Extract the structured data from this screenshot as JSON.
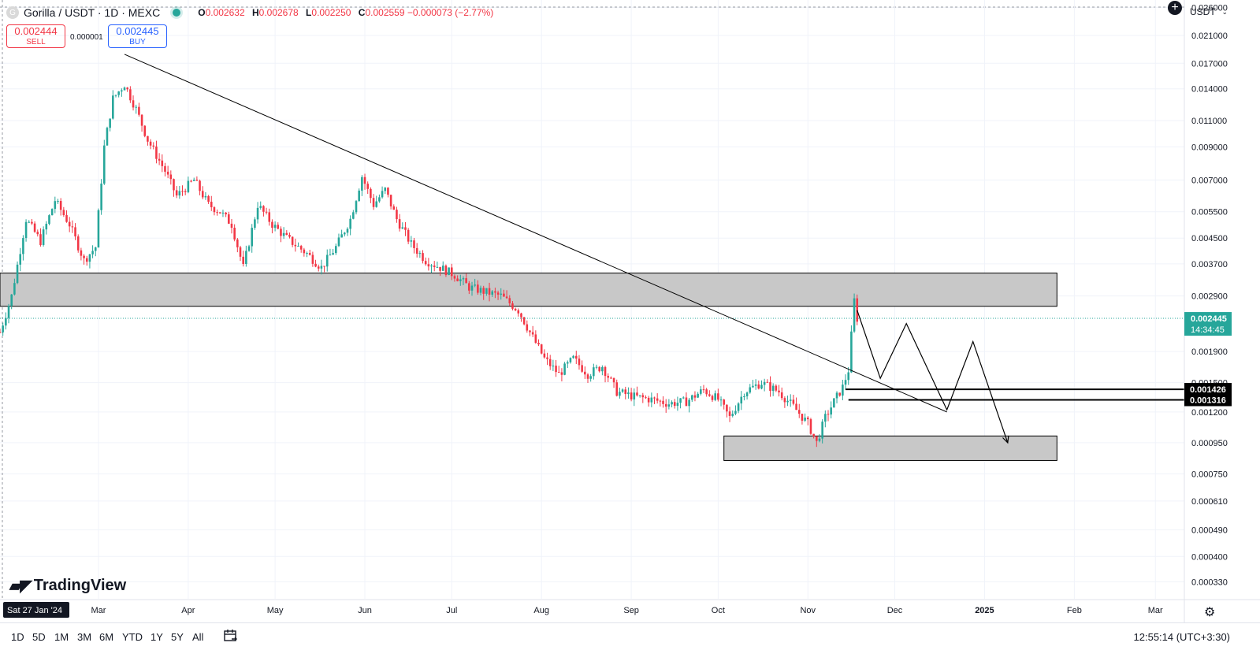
{
  "header": {
    "logo_letter": "G",
    "symbol": "Gorilla / USDT · 1D · MEXC",
    "ohlc": {
      "o_label": "O",
      "o": "0.002632",
      "h_label": "H",
      "h": "0.002678",
      "l_label": "L",
      "l": "0.002250",
      "c_label": "C",
      "c": "0.002559",
      "change": "−0.000073 (−2.77%)"
    },
    "sell_price": "0.002444",
    "sell_label": "SELL",
    "spread": "0.000001",
    "buy_price": "0.002445",
    "buy_label": "BUY",
    "currency": "USDT"
  },
  "branding": {
    "name": "TradingView"
  },
  "bottom": {
    "ranges": [
      "1D",
      "5D",
      "1M",
      "3M",
      "6M",
      "YTD",
      "1Y",
      "5Y",
      "All"
    ],
    "clock": "12:55:14 (UTC+3:30)"
  },
  "colors": {
    "up": "#26a69a",
    "down": "#f23645",
    "zone_fill": "#c8c8c8",
    "current_line": "#26a69a"
  },
  "chart_data": {
    "type": "candlestick",
    "scale": "log",
    "ylim": [
      0.00029,
      0.0275
    ],
    "yticks": [
      "0.026000",
      "0.021000",
      "0.017000",
      "0.014000",
      "0.011000",
      "0.009000",
      "0.007000",
      "0.005500",
      "0.004500",
      "0.003700",
      "0.002900",
      "0.001900",
      "0.001500",
      "0.001200",
      "0.000950",
      "0.000750",
      "0.000610",
      "0.000490",
      "0.000400",
      "0.000330"
    ],
    "x_start": "2024-01-27",
    "x_end": "2025-03-11",
    "xticks": [
      {
        "label": "Sat 27 Jan '24",
        "date": "2024-01-27",
        "badge": true
      },
      {
        "label": "Mar",
        "date": "2024-03-01"
      },
      {
        "label": "Apr",
        "date": "2024-04-01"
      },
      {
        "label": "May",
        "date": "2024-05-01"
      },
      {
        "label": "Jun",
        "date": "2024-06-01"
      },
      {
        "label": "Jul",
        "date": "2024-07-01"
      },
      {
        "label": "Aug",
        "date": "2024-08-01"
      },
      {
        "label": "Sep",
        "date": "2024-09-01"
      },
      {
        "label": "Oct",
        "date": "2024-10-01"
      },
      {
        "label": "Nov",
        "date": "2024-11-01"
      },
      {
        "label": "Dec",
        "date": "2024-12-01"
      },
      {
        "label": "2025",
        "date": "2025-01-01",
        "bold": true
      },
      {
        "label": "Feb",
        "date": "2025-02-01"
      },
      {
        "label": "Mar",
        "date": "2025-03-01"
      }
    ],
    "price_path": [
      [
        "2024-01-27",
        0.0022
      ],
      [
        "2024-01-31",
        0.0029
      ],
      [
        "2024-02-05",
        0.0052
      ],
      [
        "2024-02-10",
        0.0044
      ],
      [
        "2024-02-15",
        0.006
      ],
      [
        "2024-02-20",
        0.005
      ],
      [
        "2024-02-25",
        0.0038
      ],
      [
        "2024-02-29",
        0.0042
      ],
      [
        "2024-03-03",
        0.009
      ],
      [
        "2024-03-06",
        0.013
      ],
      [
        "2024-03-10",
        0.0145
      ],
      [
        "2024-03-14",
        0.012
      ],
      [
        "2024-03-18",
        0.0095
      ],
      [
        "2024-03-24",
        0.0075
      ],
      [
        "2024-03-28",
        0.0062
      ],
      [
        "2024-04-03",
        0.007
      ],
      [
        "2024-04-08",
        0.0058
      ],
      [
        "2024-04-12",
        0.0055
      ],
      [
        "2024-04-16",
        0.005
      ],
      [
        "2024-04-20",
        0.0036
      ],
      [
        "2024-04-25",
        0.0058
      ],
      [
        "2024-04-30",
        0.005
      ],
      [
        "2024-05-05",
        0.0045
      ],
      [
        "2024-05-12",
        0.004
      ],
      [
        "2024-05-17",
        0.0036
      ],
      [
        "2024-05-22",
        0.0042
      ],
      [
        "2024-05-27",
        0.0052
      ],
      [
        "2024-05-31",
        0.0072
      ],
      [
        "2024-06-04",
        0.0058
      ],
      [
        "2024-06-08",
        0.0065
      ],
      [
        "2024-06-12",
        0.0052
      ],
      [
        "2024-06-17",
        0.0043
      ],
      [
        "2024-06-22",
        0.0038
      ],
      [
        "2024-06-27",
        0.0036
      ],
      [
        "2024-07-02",
        0.0034
      ],
      [
        "2024-07-07",
        0.0031
      ],
      [
        "2024-07-12",
        0.003
      ],
      [
        "2024-07-18",
        0.0029
      ],
      [
        "2024-07-24",
        0.0026
      ],
      [
        "2024-07-28",
        0.0022
      ],
      [
        "2024-08-02",
        0.0018
      ],
      [
        "2024-08-07",
        0.0016
      ],
      [
        "2024-08-12",
        0.0018
      ],
      [
        "2024-08-17",
        0.0016
      ],
      [
        "2024-08-22",
        0.0017
      ],
      [
        "2024-08-27",
        0.0014
      ],
      [
        "2024-09-02",
        0.00135
      ],
      [
        "2024-09-08",
        0.00132
      ],
      [
        "2024-09-14",
        0.00128
      ],
      [
        "2024-09-20",
        0.0013
      ],
      [
        "2024-09-26",
        0.00142
      ],
      [
        "2024-10-01",
        0.00132
      ],
      [
        "2024-10-05",
        0.00115
      ],
      [
        "2024-10-10",
        0.0014
      ],
      [
        "2024-10-16",
        0.0015
      ],
      [
        "2024-10-22",
        0.0014
      ],
      [
        "2024-10-27",
        0.00125
      ],
      [
        "2024-11-01",
        0.0011
      ],
      [
        "2024-11-04",
        0.00095
      ],
      [
        "2024-11-07",
        0.00115
      ],
      [
        "2024-11-10",
        0.0013
      ],
      [
        "2024-11-13",
        0.00145
      ],
      [
        "2024-11-15",
        0.00165
      ],
      [
        "2024-11-17",
        0.0028
      ],
      [
        "2024-11-18",
        0.002445
      ]
    ],
    "current_price": {
      "value": 0.002445,
      "label": "0.002445",
      "countdown": "14:34:45"
    },
    "levels": [
      {
        "value": 0.001426,
        "label": "0.001426",
        "start": "2024-11-14"
      },
      {
        "value": 0.001316,
        "label": "0.001316",
        "start": "2024-11-15"
      }
    ],
    "zones": [
      {
        "start": "2024-01-27",
        "end": "2025-01-26",
        "top": 0.00345,
        "bottom": 0.00268
      },
      {
        "start": "2024-10-03",
        "end": "2025-01-26",
        "top": 0.001,
        "bottom": 0.00083
      }
    ],
    "trendline": [
      [
        "2024-03-10",
        0.0182
      ],
      [
        "2024-12-19",
        0.0012
      ]
    ],
    "projection": [
      [
        "2024-11-18",
        0.0026
      ],
      [
        "2024-11-26",
        0.00155
      ],
      [
        "2024-12-05",
        0.00235
      ],
      [
        "2024-12-19",
        0.00122
      ],
      [
        "2024-12-28",
        0.00205
      ],
      [
        "2025-01-09",
        0.00095
      ]
    ]
  }
}
